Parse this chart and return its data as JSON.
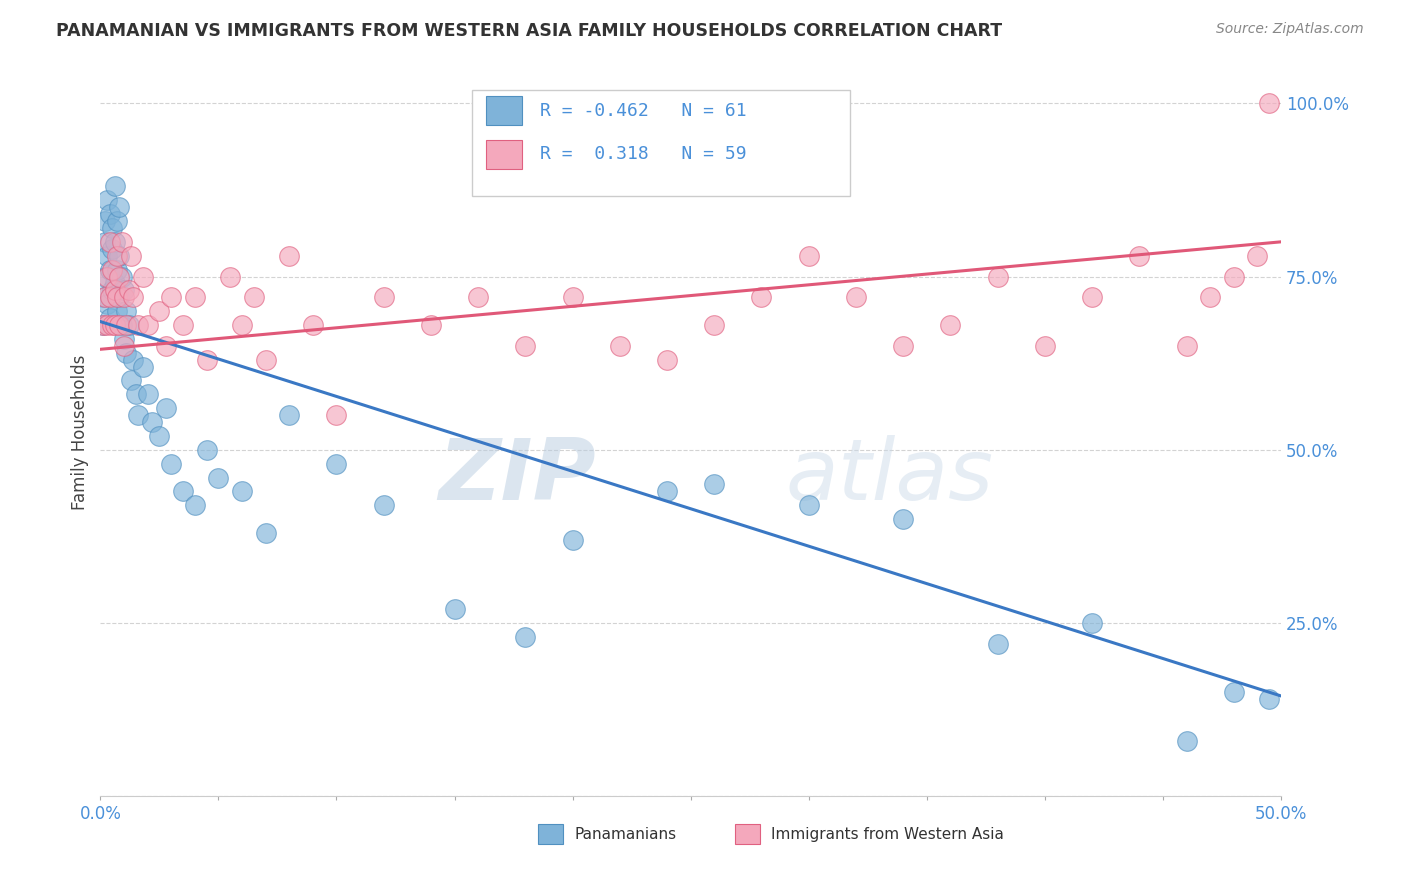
{
  "title": "PANAMANIAN VS IMMIGRANTS FROM WESTERN ASIA FAMILY HOUSEHOLDS CORRELATION CHART",
  "source_text": "Source: ZipAtlas.com",
  "ylabel": "Family Households",
  "yticks": [
    0.0,
    0.25,
    0.5,
    0.75,
    1.0
  ],
  "ytick_labels": [
    "",
    "25.0%",
    "50.0%",
    "75.0%",
    "100.0%"
  ],
  "xlim": [
    0.0,
    0.5
  ],
  "ylim": [
    0.0,
    1.05
  ],
  "blue_scatter_x": [
    0.001,
    0.001,
    0.002,
    0.002,
    0.002,
    0.003,
    0.003,
    0.003,
    0.004,
    0.004,
    0.004,
    0.005,
    0.005,
    0.005,
    0.006,
    0.006,
    0.006,
    0.007,
    0.007,
    0.007,
    0.008,
    0.008,
    0.008,
    0.009,
    0.009,
    0.01,
    0.01,
    0.011,
    0.011,
    0.012,
    0.013,
    0.014,
    0.015,
    0.016,
    0.018,
    0.02,
    0.022,
    0.025,
    0.028,
    0.03,
    0.035,
    0.04,
    0.045,
    0.05,
    0.06,
    0.07,
    0.08,
    0.1,
    0.12,
    0.15,
    0.18,
    0.2,
    0.24,
    0.26,
    0.3,
    0.34,
    0.38,
    0.42,
    0.46,
    0.48,
    0.495
  ],
  "blue_scatter_y": [
    0.68,
    0.72,
    0.8,
    0.75,
    0.83,
    0.78,
    0.86,
    0.71,
    0.84,
    0.76,
    0.69,
    0.79,
    0.82,
    0.73,
    0.88,
    0.74,
    0.8,
    0.76,
    0.83,
    0.7,
    0.85,
    0.78,
    0.72,
    0.68,
    0.75,
    0.66,
    0.73,
    0.64,
    0.7,
    0.68,
    0.6,
    0.63,
    0.58,
    0.55,
    0.62,
    0.58,
    0.54,
    0.52,
    0.56,
    0.48,
    0.44,
    0.42,
    0.5,
    0.46,
    0.44,
    0.38,
    0.55,
    0.48,
    0.42,
    0.27,
    0.23,
    0.37,
    0.44,
    0.45,
    0.42,
    0.4,
    0.22,
    0.25,
    0.08,
    0.15,
    0.14
  ],
  "pink_scatter_x": [
    0.001,
    0.002,
    0.003,
    0.003,
    0.004,
    0.004,
    0.005,
    0.005,
    0.006,
    0.006,
    0.007,
    0.007,
    0.008,
    0.008,
    0.009,
    0.01,
    0.01,
    0.011,
    0.012,
    0.013,
    0.014,
    0.016,
    0.018,
    0.02,
    0.025,
    0.028,
    0.03,
    0.035,
    0.04,
    0.045,
    0.055,
    0.06,
    0.065,
    0.07,
    0.08,
    0.09,
    0.1,
    0.12,
    0.14,
    0.16,
    0.18,
    0.2,
    0.22,
    0.24,
    0.26,
    0.28,
    0.3,
    0.32,
    0.34,
    0.36,
    0.38,
    0.4,
    0.42,
    0.44,
    0.46,
    0.47,
    0.48,
    0.49,
    0.495
  ],
  "pink_scatter_y": [
    0.68,
    0.72,
    0.75,
    0.68,
    0.8,
    0.72,
    0.76,
    0.68,
    0.73,
    0.68,
    0.78,
    0.72,
    0.68,
    0.75,
    0.8,
    0.65,
    0.72,
    0.68,
    0.73,
    0.78,
    0.72,
    0.68,
    0.75,
    0.68,
    0.7,
    0.65,
    0.72,
    0.68,
    0.72,
    0.63,
    0.75,
    0.68,
    0.72,
    0.63,
    0.78,
    0.68,
    0.55,
    0.72,
    0.68,
    0.72,
    0.65,
    0.72,
    0.65,
    0.63,
    0.68,
    0.72,
    0.78,
    0.72,
    0.65,
    0.68,
    0.75,
    0.65,
    0.72,
    0.78,
    0.65,
    0.72,
    0.75,
    0.78,
    1.0
  ],
  "blue_trend_x": [
    0.0,
    0.5
  ],
  "blue_trend_y": [
    0.685,
    0.145
  ],
  "pink_trend_x": [
    0.0,
    0.5
  ],
  "pink_trend_y": [
    0.645,
    0.8
  ],
  "blue_color": "#7fb3d9",
  "blue_edge": "#5090c0",
  "pink_color": "#f4a8bc",
  "pink_edge": "#e06080",
  "blue_line_color": "#3a78c4",
  "pink_line_color": "#e05878",
  "watermark_zip": "ZIP",
  "watermark_atlas": "atlas",
  "background_color": "#ffffff",
  "grid_color": "#c8c8c8",
  "title_color": "#333333",
  "tick_color": "#4a90d9",
  "source_color": "#888888",
  "ylabel_color": "#444444"
}
